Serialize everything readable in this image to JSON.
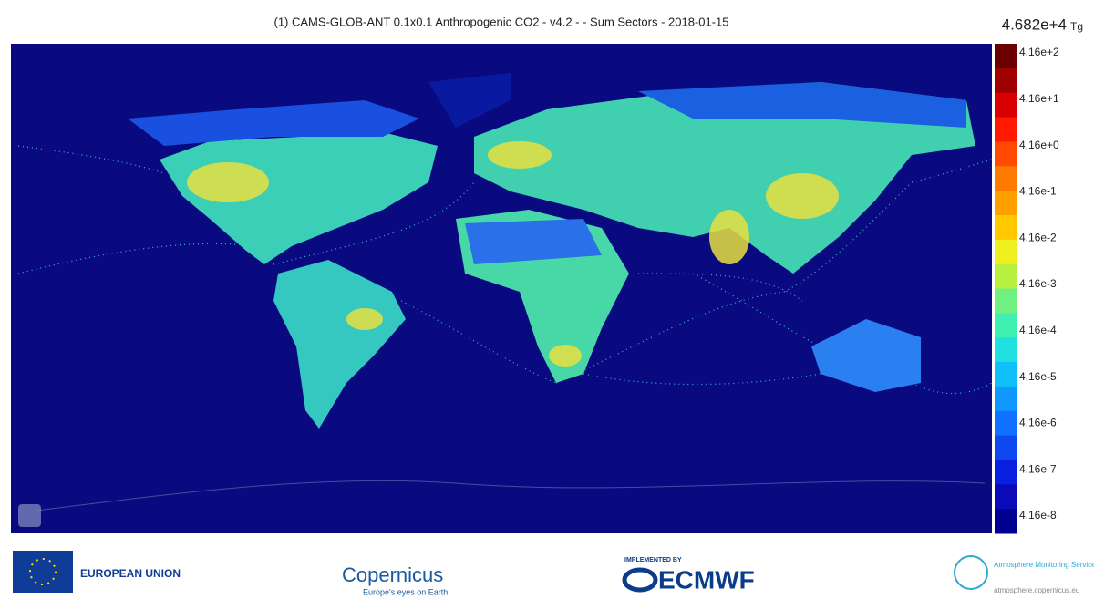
{
  "header": {
    "title": "(1) CAMS-GLOB-ANT 0.1x0.1 Anthropogenic CO2 - v4.2 - - Sum Sectors - 2018-01-15",
    "total": "4.682e+4",
    "unit": "Tg"
  },
  "colorbar": {
    "labels": [
      "4.16e+2",
      "4.16e+1",
      "4.16e+0",
      "4.16e-1",
      "4.16e-2",
      "4.16e-3",
      "4.16e-4",
      "4.16e-5",
      "4.16e-6",
      "4.16e-7",
      "4.16e-8"
    ]
  },
  "footer": {
    "eu": "EUROPEAN UNION",
    "copernicus": "Copernicus",
    "copernicus_tagline": "Europe's eyes on Earth",
    "implemented_by": "IMPLEMENTED BY",
    "ecmwf": "ECMWF",
    "cams": "Atmosphere Monitoring Service",
    "cams_url": "atmosphere.copernicus.eu"
  }
}
